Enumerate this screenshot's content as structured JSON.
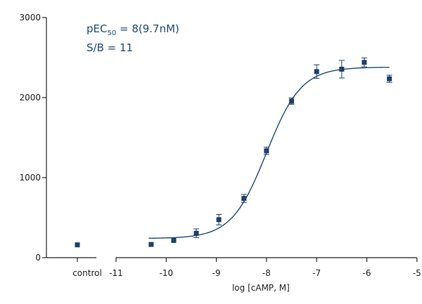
{
  "chart_data": {
    "type": "scatter",
    "xlabel": "log [cAMP, M]",
    "ylabel": "",
    "xlim": [
      -11,
      -5
    ],
    "ylim": [
      0,
      3000
    ],
    "x_ticks": [
      -11,
      -10,
      -9,
      -8,
      -7,
      -6,
      -5
    ],
    "x_tick_labels": [
      "-11",
      "-10",
      "-9",
      "-8",
      "-7",
      "-6",
      "-5"
    ],
    "y_ticks": [
      0,
      1000,
      2000,
      3000
    ],
    "y_tick_labels": [
      "0",
      "1000",
      "2000",
      "3000"
    ],
    "control": {
      "label": "control",
      "value": 160
    },
    "points": [
      {
        "x": -10.3,
        "y": 165,
        "err": 0
      },
      {
        "x": -9.85,
        "y": 215,
        "err": 0
      },
      {
        "x": -9.4,
        "y": 305,
        "err": 55
      },
      {
        "x": -8.95,
        "y": 475,
        "err": 65
      },
      {
        "x": -8.45,
        "y": 740,
        "err": 50
      },
      {
        "x": -8.0,
        "y": 1335,
        "err": 45
      },
      {
        "x": -7.5,
        "y": 1955,
        "err": 40
      },
      {
        "x": -7.0,
        "y": 2325,
        "err": 85
      },
      {
        "x": -6.5,
        "y": 2355,
        "err": 110
      },
      {
        "x": -6.05,
        "y": 2440,
        "err": 55
      },
      {
        "x": -5.55,
        "y": 2235,
        "err": 45
      }
    ],
    "fit": {
      "model": "four-parameter logistic",
      "bottom": 240,
      "top": 2380,
      "logEC50": -8.0,
      "hill": 1.25,
      "x_range": [
        -10.35,
        -5.55
      ]
    },
    "annotations": {
      "pec50_main": "pEC",
      "pec50_sub": "50",
      "pec50_value": " = 8(9.7nM)",
      "sb": "S/B = 11"
    },
    "colors": {
      "marker": "#1f3f66",
      "line": "#1f4e79",
      "axis": "#222222",
      "annotation": "#1f4e79"
    },
    "grid": false,
    "legend": "none"
  }
}
